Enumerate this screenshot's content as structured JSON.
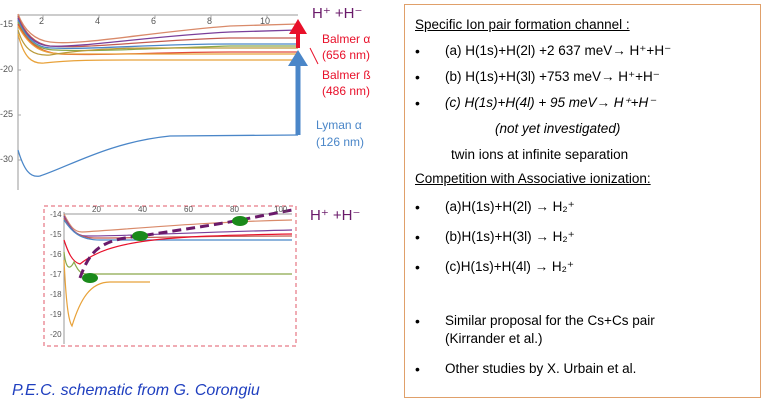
{
  "top_plot": {
    "x_ticks": [
      "2",
      "4",
      "6",
      "8",
      "10"
    ],
    "y_ticks": [
      "-15",
      "-20",
      "-25",
      "-30"
    ],
    "products_label": "H⁺ +H⁻",
    "balmer_alpha": "Balmer α",
    "balmer_alpha_nm": "(656 nm)",
    "balmer_beta": "Balmer ß",
    "balmer_beta_nm": "(486 nm)",
    "lyman_alpha": "Lyman α",
    "lyman_alpha_nm": "(126 nm)"
  },
  "bottom_plot": {
    "x_ticks": [
      "20",
      "40",
      "60",
      "80",
      "100"
    ],
    "y_ticks": [
      "-14",
      "-15",
      "-16",
      "-17",
      "-18",
      "-19",
      "-20"
    ],
    "products_label": "H⁺ +H⁻"
  },
  "credit": "P.E.C. schematic from G. Corongiu",
  "info": {
    "heading1": "Specific Ion  pair formation channel :",
    "items1": [
      "(a) H(1s)+H(2l) +2 637 meV→    H⁺+H⁻",
      "(b) H(1s)+H(3l) +753 meV→    H⁺+H⁻",
      "(c) H(1s)+H(4l) + 95 meV→    H⁺+H⁻"
    ],
    "not_investigated": "(not yet investigated)",
    "twin_ions": "twin ions at  infinite separation",
    "heading2": "Competition with Associative ionization:",
    "items2": [
      "(a)H(1s)+H(2l)  →     H₂⁺",
      "(b)H(1s)+H(3l)  →     H₂⁺",
      "(c)H(1s)+H(4l)  →     H₂⁺"
    ],
    "items3": [
      "Similar proposal for the Cs+Cs pair",
      "(Kirrander et al.)",
      " Other studies by X. Urbain et al."
    ]
  },
  "colors": {
    "balmer": "#e8102a",
    "lyman": "#4a86c8",
    "purple": "#6a1a6a",
    "credit": "#1f3fbf",
    "box_border": "#e0a06a"
  }
}
